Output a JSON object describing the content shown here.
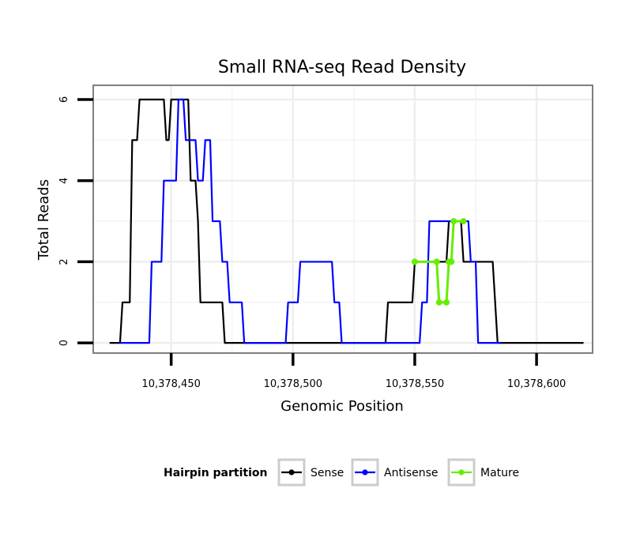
{
  "chart_data": {
    "type": "line",
    "title": "Small RNA-seq Read Density",
    "xlabel": "Genomic Position",
    "ylabel": "Total Reads",
    "xlim": [
      10378418,
      10378623
    ],
    "ylim": [
      -0.25,
      6.35
    ],
    "x_ticks": [
      10378450,
      10378500,
      10378550,
      10378600
    ],
    "x_tick_labels": [
      "10,378,450",
      "10,378,500",
      "10,378,550",
      "10,378,600"
    ],
    "y_ticks": [
      0,
      2,
      4,
      6
    ],
    "y_tick_labels": [
      "0",
      "2",
      "4",
      "6"
    ],
    "grid": true,
    "legend": {
      "title": "Hairpin partition",
      "position": "bottom",
      "entries": [
        "Sense",
        "Antisense",
        "Mature"
      ]
    },
    "series": [
      {
        "name": "Sense",
        "color": "#000000",
        "points": [
          [
            10378425,
            0
          ],
          [
            10378429,
            0
          ],
          [
            10378430,
            1
          ],
          [
            10378433,
            1
          ],
          [
            10378434,
            5
          ],
          [
            10378436,
            5
          ],
          [
            10378437,
            6
          ],
          [
            10378447,
            6
          ],
          [
            10378448,
            5
          ],
          [
            10378449,
            5
          ],
          [
            10378450,
            6
          ],
          [
            10378457,
            6
          ],
          [
            10378458,
            4
          ],
          [
            10378460,
            4
          ],
          [
            10378461,
            3
          ],
          [
            10378462,
            1
          ],
          [
            10378471,
            1
          ],
          [
            10378472,
            0
          ],
          [
            10378538,
            0
          ],
          [
            10378539,
            1
          ],
          [
            10378549,
            1
          ],
          [
            10378550,
            2
          ],
          [
            10378563,
            2
          ],
          [
            10378564,
            3
          ],
          [
            10378569,
            3
          ],
          [
            10378570,
            2
          ],
          [
            10378582,
            2
          ],
          [
            10378583,
            1
          ],
          [
            10378584,
            0
          ],
          [
            10378619,
            0
          ]
        ]
      },
      {
        "name": "Antisense",
        "color": "#0000ff",
        "points": [
          [
            10378429,
            0
          ],
          [
            10378441,
            0
          ],
          [
            10378442,
            2
          ],
          [
            10378446,
            2
          ],
          [
            10378447,
            4
          ],
          [
            10378452,
            4
          ],
          [
            10378453,
            6
          ],
          [
            10378455,
            6
          ],
          [
            10378456,
            5
          ],
          [
            10378460,
            5
          ],
          [
            10378461,
            4
          ],
          [
            10378463,
            4
          ],
          [
            10378464,
            5
          ],
          [
            10378466,
            5
          ],
          [
            10378467,
            3
          ],
          [
            10378470,
            3
          ],
          [
            10378471,
            2
          ],
          [
            10378473,
            2
          ],
          [
            10378474,
            1
          ],
          [
            10378479,
            1
          ],
          [
            10378480,
            0
          ],
          [
            10378497,
            0
          ],
          [
            10378498,
            1
          ],
          [
            10378502,
            1
          ],
          [
            10378503,
            2
          ],
          [
            10378516,
            2
          ],
          [
            10378517,
            1
          ],
          [
            10378519,
            1
          ],
          [
            10378520,
            0
          ],
          [
            10378552,
            0
          ],
          [
            10378553,
            1
          ],
          [
            10378555,
            1
          ],
          [
            10378556,
            3
          ],
          [
            10378572,
            3
          ],
          [
            10378573,
            2
          ],
          [
            10378575,
            2
          ],
          [
            10378576,
            0
          ],
          [
            10378585,
            0
          ]
        ]
      },
      {
        "name": "Mature",
        "color": "#66ee00",
        "points": [
          [
            10378550,
            2
          ],
          [
            10378559,
            2
          ],
          [
            10378560,
            1
          ],
          [
            10378563,
            1
          ],
          [
            10378564,
            2
          ],
          [
            10378565,
            2
          ],
          [
            10378566,
            3
          ],
          [
            10378570,
            3
          ]
        ]
      }
    ]
  }
}
